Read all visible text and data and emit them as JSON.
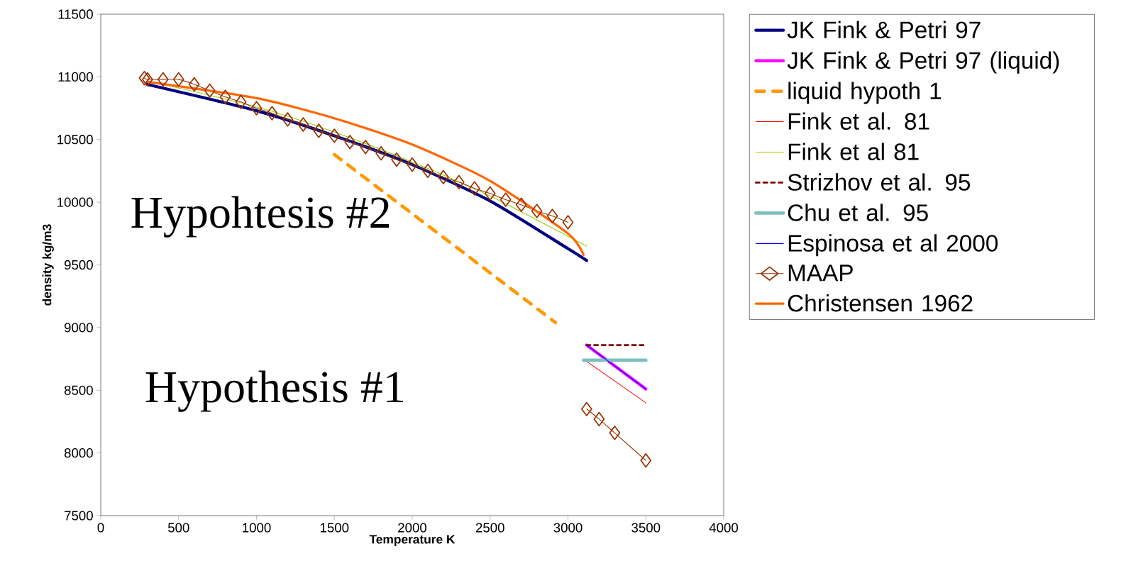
{
  "chart_data": {
    "type": "line",
    "xlabel": "Temperature K",
    "ylabel": "density kg/m3",
    "xlim": [
      0,
      4000
    ],
    "ylim": [
      7500,
      11500
    ],
    "xticks": [
      0,
      500,
      1000,
      1500,
      2000,
      2500,
      3000,
      3500,
      4000
    ],
    "yticks": [
      7500,
      8000,
      8500,
      9000,
      9500,
      10000,
      10500,
      11000,
      11500
    ],
    "grid": false,
    "legend": "right",
    "annotations": [
      "Hypohtesis #2",
      "Hypothesis #1"
    ],
    "series": [
      {
        "name": "JK Fink & Petri 97",
        "color": "#000080",
        "line_style": "solid",
        "marker": "none",
        "x": [
          298,
          1000,
          1500,
          2000,
          2500,
          3000,
          3120
        ],
        "values": [
          10940,
          10730,
          10530,
          10300,
          10010,
          9630,
          9535
        ]
      },
      {
        "name": "JK Fink & Petri 97 (liquid)",
        "color": "#ff00ff",
        "line_style": "solid",
        "marker": "none",
        "x": [
          3120,
          3500
        ],
        "values": [
          8860,
          8510
        ]
      },
      {
        "name": "liquid hypoth 1",
        "color": "#ff9900",
        "line_style": "dashed",
        "marker": "none",
        "x": [
          1500,
          2920
        ],
        "values": [
          10380,
          9040
        ]
      },
      {
        "name": "Fink et al. 81",
        "color": "#ff0000",
        "line_style": "solid",
        "marker": "none",
        "x": [
          3120,
          3500
        ],
        "values": [
          8730,
          8400
        ]
      },
      {
        "name": "Fink et al 81",
        "color": "#99cc00",
        "line_style": "solid",
        "marker": "none",
        "x": [
          298,
          1000,
          1500,
          2000,
          2500,
          3120
        ],
        "values": [
          10970,
          10760,
          10560,
          10320,
          10050,
          9650
        ]
      },
      {
        "name": "Strizhov et al. 95",
        "color": "#800000",
        "line_style": "dotted",
        "marker": "none",
        "x": [
          3120,
          3500
        ],
        "values": [
          8860,
          8860
        ]
      },
      {
        "name": "Chu et al. 95",
        "color": "#7fbfbf",
        "line_style": "solid",
        "marker": "none",
        "x": [
          3100,
          3500
        ],
        "values": [
          8740,
          8740
        ]
      },
      {
        "name": "Espinosa et al 2000",
        "color": "#0000ff",
        "line_style": "solid",
        "marker": "none",
        "x": [
          3120,
          3500
        ],
        "values": [
          8860,
          8510
        ]
      },
      {
        "name": "MAAP",
        "color": "#993300",
        "line_style": "solid",
        "marker": "diamond",
        "x": [
          280,
          300,
          400,
          500,
          600,
          700,
          800,
          900,
          1000,
          1100,
          1200,
          1300,
          1400,
          1500,
          1600,
          1700,
          1800,
          1900,
          2000,
          2100,
          2200,
          2300,
          2400,
          2500,
          2600,
          2700,
          2800,
          2900,
          3000,
          3060,
          3120,
          3200,
          3300,
          3500
        ],
        "values": [
          10990,
          10980,
          10980,
          10980,
          10940,
          10890,
          10840,
          10800,
          10750,
          10710,
          10660,
          10620,
          10570,
          10530,
          10480,
          10440,
          10390,
          10340,
          10300,
          10250,
          10200,
          10160,
          10110,
          10070,
          10020,
          9980,
          9930,
          9890,
          9840,
          null,
          8350,
          8270,
          8160,
          7940
        ]
      },
      {
        "name": "Christensen 1962",
        "color": "#ff6600",
        "line_style": "solid",
        "marker": "none",
        "x": [
          298,
          1000,
          1500,
          2000,
          2500,
          3000,
          3100
        ],
        "values": [
          10960,
          10830,
          10670,
          10460,
          10170,
          9750,
          9580
        ]
      }
    ]
  }
}
